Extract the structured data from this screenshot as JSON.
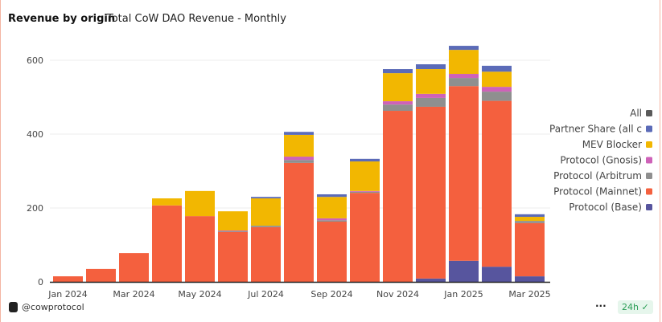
{
  "header": {
    "title": "Revenue by origin",
    "subtitle": "Total CoW DAO Revenue - Monthly"
  },
  "footer": {
    "handle": "@cowprotocol",
    "more": "···",
    "refresh": "24h ✓"
  },
  "chart_data": {
    "type": "bar",
    "stacked": true,
    "categories": [
      "Jan 2024",
      "Feb 2024",
      "Mar 2024",
      "Apr 2024",
      "May 2024",
      "Jun 2024",
      "Jul 2024",
      "Aug 2024",
      "Sep 2024",
      "Oct 2024",
      "Nov 2024",
      "Dec 2024",
      "Jan 2025",
      "Feb 2025",
      "Mar 2025"
    ],
    "xticks": [
      "Jan 2024",
      "Mar 2024",
      "May 2024",
      "Jul 2024",
      "Sep 2024",
      "Nov 2024",
      "Jan 2025",
      "Mar 2025"
    ],
    "yticks": [
      0,
      200,
      400,
      600
    ],
    "ylim": [
      0,
      650
    ],
    "grid": true,
    "legend": "right",
    "legend_entries": [
      {
        "name": "All",
        "color": "#5A5A5A"
      },
      {
        "name": "Partner Share (all c",
        "color": "#5B6BB8"
      },
      {
        "name": "MEV Blocker",
        "color": "#F2B701"
      },
      {
        "name": "Protocol (Gnosis)",
        "color": "#CE62B8"
      },
      {
        "name": "Protocol (Arbitrum",
        "color": "#8F8F8F"
      },
      {
        "name": "Protocol (Mainnet)",
        "color": "#F4603E"
      },
      {
        "name": "Protocol (Base)",
        "color": "#57559E"
      }
    ],
    "series": [
      {
        "name": "Protocol (Base)",
        "color": "#57559E",
        "values": [
          0,
          0,
          0,
          0,
          0,
          0,
          0,
          0,
          0,
          0,
          0,
          9,
          57,
          41,
          15
        ]
      },
      {
        "name": "Protocol (Mainnet)",
        "color": "#F4603E",
        "values": [
          15,
          35,
          78,
          207,
          178,
          135,
          148,
          322,
          163,
          241,
          463,
          465,
          473,
          449,
          144
        ]
      },
      {
        "name": "Protocol (Arbitrum",
        "color": "#8F8F8F",
        "values": [
          0,
          0,
          0,
          0,
          0,
          2,
          4,
          8,
          4,
          3,
          17,
          24,
          22,
          25,
          6
        ]
      },
      {
        "name": "Protocol (Gnosis)",
        "color": "#CE62B8",
        "values": [
          0,
          0,
          0,
          0,
          0,
          2,
          0,
          9,
          5,
          2,
          9,
          11,
          11,
          13,
          0
        ]
      },
      {
        "name": "MEV Blocker",
        "color": "#F2B701",
        "values": [
          0,
          0,
          0,
          19,
          68,
          52,
          74,
          59,
          58,
          80,
          76,
          67,
          65,
          41,
          11
        ]
      },
      {
        "name": "Partner Share (all c",
        "color": "#5B6BB8",
        "values": [
          0,
          0,
          0,
          0,
          0,
          0,
          4,
          8,
          7,
          7,
          11,
          13,
          11,
          16,
          7
        ]
      }
    ]
  }
}
